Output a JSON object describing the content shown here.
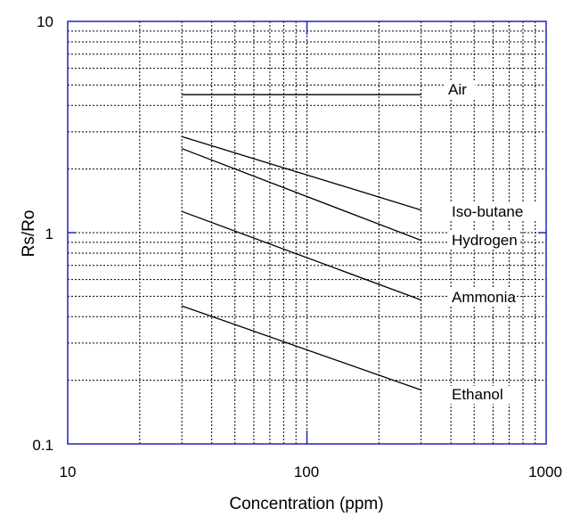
{
  "chart_data": {
    "type": "line",
    "title": "",
    "xlabel": "Concentration (ppm)",
    "ylabel": "Rs/Ro",
    "xscale": "log",
    "yscale": "log",
    "xlim": [
      10,
      1000
    ],
    "ylim": [
      0.1,
      10
    ],
    "x_tick_labels": [
      "10",
      "100",
      "1000"
    ],
    "y_tick_labels": [
      "0.1",
      "1",
      "10"
    ],
    "grid": true,
    "series": [
      {
        "name": "Air",
        "x": [
          30,
          300
        ],
        "y": [
          4.5,
          4.5
        ]
      },
      {
        "name": "Iso-butane",
        "x": [
          30,
          300
        ],
        "y": [
          2.85,
          1.28
        ]
      },
      {
        "name": "Hydrogen",
        "x": [
          30,
          300
        ],
        "y": [
          2.5,
          0.92
        ]
      },
      {
        "name": "Ammonia",
        "x": [
          30,
          300
        ],
        "y": [
          1.26,
          0.48
        ]
      },
      {
        "name": "Ethanol",
        "x": [
          30,
          300
        ],
        "y": [
          0.45,
          0.18
        ]
      }
    ]
  }
}
